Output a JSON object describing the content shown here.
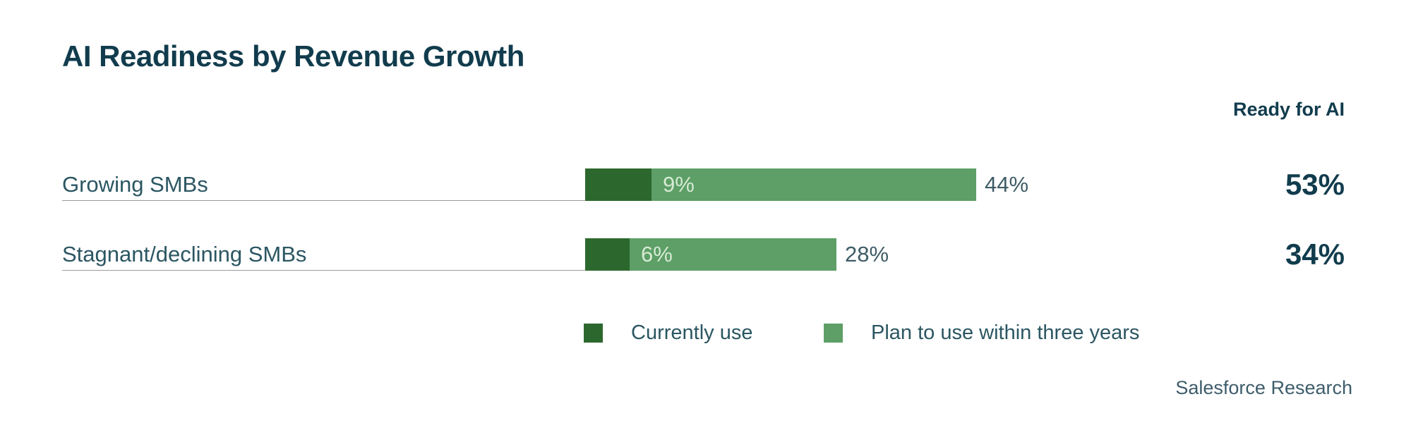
{
  "title": "AI Readiness by Revenue Growth",
  "ready_header": "Ready for AI",
  "source": "Salesforce Research",
  "colors": {
    "dark_green": "#2C682D",
    "light_green": "#5D9F66",
    "title_teal": "#113C4D",
    "label_teal": "#2B5662",
    "pct_outside_teal": "#3E5C66",
    "pct_inside_light": "#D6EAD4",
    "divider_gray": "#9B9B9B"
  },
  "legend": {
    "items": [
      {
        "label": "Currently use",
        "swatch_color": "#2C682D"
      },
      {
        "label": "Plan to use within three years",
        "swatch_color": "#5D9F66"
      }
    ]
  },
  "rows": [
    {
      "label": "Growing SMBs",
      "currently_use": 9,
      "plan_to_use": 44,
      "inside_label": "9%",
      "outside_label": "44%",
      "ready_label": "53%"
    },
    {
      "label": "Stagnant/declining SMBs",
      "currently_use": 6,
      "plan_to_use": 28,
      "inside_label": "6%",
      "outside_label": "28%",
      "ready_label": "34%"
    }
  ],
  "chart_data": {
    "type": "bar",
    "orientation": "horizontal",
    "stacked": true,
    "title": "AI Readiness by Revenue Growth",
    "categories": [
      "Growing SMBs",
      "Stagnant/declining SMBs"
    ],
    "series": [
      {
        "name": "Currently use",
        "values": [
          9,
          6
        ],
        "color": "#2C682D"
      },
      {
        "name": "Plan to use within three years",
        "values": [
          44,
          28
        ],
        "color": "#5D9F66"
      }
    ],
    "totals_column_label": "Ready for AI",
    "totals": [
      53,
      34
    ],
    "data_labels": true,
    "axes_visible": false,
    "grid": false,
    "legend_position": "bottom",
    "source": "Salesforce Research"
  }
}
